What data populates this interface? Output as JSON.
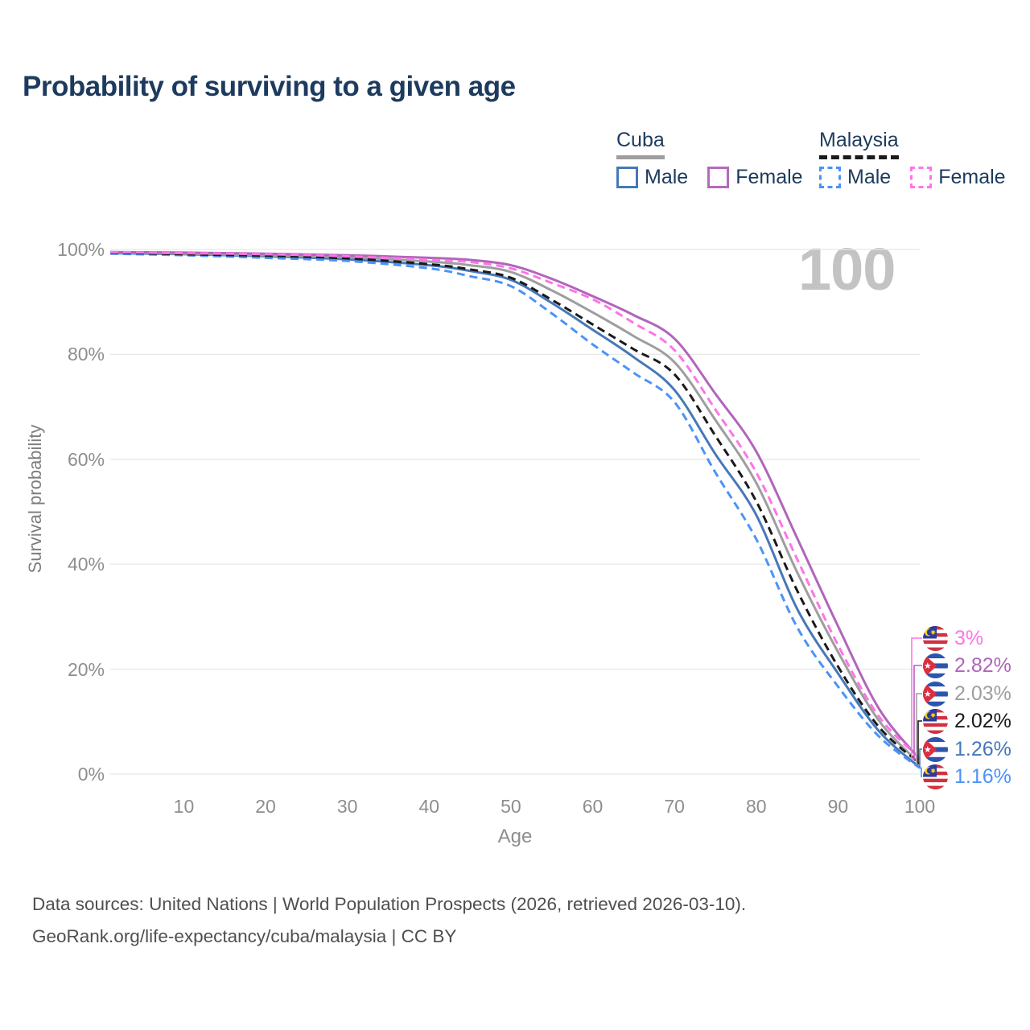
{
  "title": "Probability of surviving to a given age",
  "watermark_age_label": "100",
  "legend": {
    "groups": [
      {
        "country": "Cuba",
        "line_style": "solid",
        "line_color": "#9e9e9e",
        "items": [
          {
            "label": "Male",
            "color": "#4678b9"
          },
          {
            "label": "Female",
            "color": "#b668c0"
          }
        ]
      },
      {
        "country": "Malaysia",
        "line_style": "dashed",
        "line_color": "#1a1a1a",
        "items": [
          {
            "label": "Male",
            "color": "#4b93f7"
          },
          {
            "label": "Female",
            "color": "#ff74e8"
          }
        ]
      }
    ]
  },
  "chart_data": {
    "type": "line",
    "xlabel": "Age",
    "ylabel": "Survival probability",
    "x_ticks": [
      10,
      20,
      30,
      40,
      50,
      60,
      70,
      80,
      90,
      100
    ],
    "y_tick_labels": [
      "0%",
      "20%",
      "40%",
      "60%",
      "80%",
      "100%"
    ],
    "y_tick_values": [
      0,
      20,
      40,
      60,
      80,
      100
    ],
    "xlim": [
      1,
      100
    ],
    "ylim": [
      0,
      100
    ],
    "grid": "horizontal",
    "ages": [
      1,
      10,
      20,
      30,
      40,
      45,
      50,
      55,
      60,
      65,
      70,
      75,
      80,
      85,
      90,
      95,
      100
    ],
    "series": [
      {
        "name": "Cuba Male",
        "country": "Cuba",
        "sex": "Male",
        "color": "#4678b9",
        "dashed": false,
        "end_label": "1.26%",
        "values": [
          99.3,
          99.1,
          98.7,
          98.1,
          97.0,
          95.9,
          94.2,
          89.8,
          84.7,
          79.5,
          73.2,
          61.0,
          49.4,
          31.5,
          19.2,
          8.2,
          1.26
        ]
      },
      {
        "name": "Cuba Both sexes",
        "country": "Cuba",
        "sex": "Both",
        "color": "#9e9e9e",
        "dashed": false,
        "end_label": "2.03%",
        "values": [
          99.4,
          99.2,
          98.9,
          98.5,
          97.7,
          97.0,
          95.7,
          92.2,
          88.0,
          83.5,
          78.5,
          67.5,
          55.5,
          38.5,
          23.3,
          10.2,
          2.03
        ]
      },
      {
        "name": "Cuba Female",
        "country": "Cuba",
        "sex": "Female",
        "color": "#b165bb",
        "dashed": false,
        "end_label": "2.82%",
        "values": [
          99.5,
          99.4,
          99.2,
          98.9,
          98.4,
          98.0,
          97.0,
          94.4,
          91.1,
          87.5,
          83.0,
          72.5,
          61.5,
          45.0,
          28.2,
          12.5,
          2.82
        ]
      },
      {
        "name": "Malaysia Male",
        "country": "Malaysia",
        "sex": "Male",
        "color": "#4b93f7",
        "dashed": true,
        "end_label": "1.16%",
        "values": [
          99.2,
          98.9,
          98.4,
          97.8,
          96.4,
          94.9,
          93.0,
          87.8,
          81.9,
          76.5,
          70.9,
          57.5,
          44.8,
          28.0,
          16.7,
          7.2,
          1.16
        ]
      },
      {
        "name": "Malaysia Both sexes",
        "country": "Malaysia",
        "sex": "Both",
        "color": "#1a1a1a",
        "dashed": true,
        "end_label": "2.02%",
        "values": [
          99.4,
          99.1,
          98.8,
          98.3,
          97.2,
          96.2,
          94.6,
          90.4,
          85.7,
          81.0,
          76.2,
          64.5,
          52.0,
          35.0,
          20.5,
          9.0,
          2.02
        ]
      },
      {
        "name": "Malaysia Female",
        "country": "Malaysia",
        "sex": "Female",
        "color": "#ff74e8",
        "dashed": true,
        "end_label": "3%",
        "values": [
          99.5,
          99.3,
          99.1,
          98.7,
          98.0,
          97.6,
          96.4,
          93.6,
          90.5,
          86.0,
          80.8,
          69.5,
          57.5,
          41.0,
          24.6,
          11.0,
          3.0
        ]
      }
    ]
  },
  "footer": {
    "line1": "Data sources: United Nations | World Population Prospects (2026, retrieved 2026-03-10).",
    "line2": "GeoRank.org/life-expectancy/cuba/malaysia | CC BY"
  },
  "colors": {
    "title_text": "#1d3b5e",
    "axis_text": "#8e8e8e",
    "gridline": "#e8e8e8",
    "watermark": "#c3c3c3",
    "footer_text": "#4f4f4f"
  }
}
